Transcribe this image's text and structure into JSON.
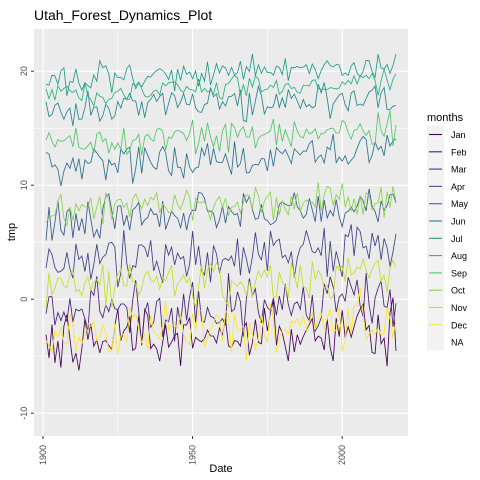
{
  "chart_data": {
    "type": "line",
    "title": "Utah_Forest_Dynamics_Plot",
    "xlabel": "Date",
    "ylabel": "tmp",
    "xlim": [
      1897,
      2022
    ],
    "ylim": [
      -12.0,
      23.7
    ],
    "x_ticks": [
      1900,
      1950,
      2000
    ],
    "y_ticks": [
      -10,
      0,
      10,
      20
    ],
    "grid": true,
    "legend": {
      "title": "months",
      "position": "right"
    },
    "year_start": 1901,
    "year_end": 2018,
    "series": [
      {
        "label": "Jan",
        "color": "#440154",
        "mean": -3.3,
        "amp": 2.4,
        "seed": 11
      },
      {
        "label": "Feb",
        "color": "#482173",
        "mean": -0.6,
        "amp": 2.2,
        "seed": 23
      },
      {
        "label": "Mar",
        "color": "#433E85",
        "mean": 3.8,
        "amp": 1.8,
        "seed": 37
      },
      {
        "label": "Apr",
        "color": "#38598C",
        "mean": 7.6,
        "amp": 1.6,
        "seed": 41
      },
      {
        "label": "May",
        "color": "#2D708E",
        "mean": 12.3,
        "amp": 1.5,
        "seed": 53
      },
      {
        "label": "Jun",
        "color": "#25858E",
        "mean": 17.2,
        "amp": 1.3,
        "seed": 67
      },
      {
        "label": "Jul",
        "color": "#1E9B8A",
        "mean": 19.8,
        "amp": 1.0,
        "seed": 71
      },
      {
        "label": "Aug",
        "color": "#2BB07F",
        "mean": 18.6,
        "amp": 1.0,
        "seed": 83
      },
      {
        "label": "Sep",
        "color": "#51C56A",
        "mean": 14.3,
        "amp": 1.2,
        "seed": 97
      },
      {
        "label": "Oct",
        "color": "#85D54A",
        "mean": 8.3,
        "amp": 1.4,
        "seed": 101
      },
      {
        "label": "Nov",
        "color": "#C2DF23",
        "mean": 1.6,
        "amp": 1.7,
        "seed": 113
      },
      {
        "label": "Dec",
        "color": "#FDE725",
        "mean": -2.7,
        "amp": 2.2,
        "seed": 127
      },
      {
        "label": "NA",
        "color": "#EBEBEB",
        "mean": null,
        "amp": 0,
        "seed": 0
      }
    ]
  }
}
